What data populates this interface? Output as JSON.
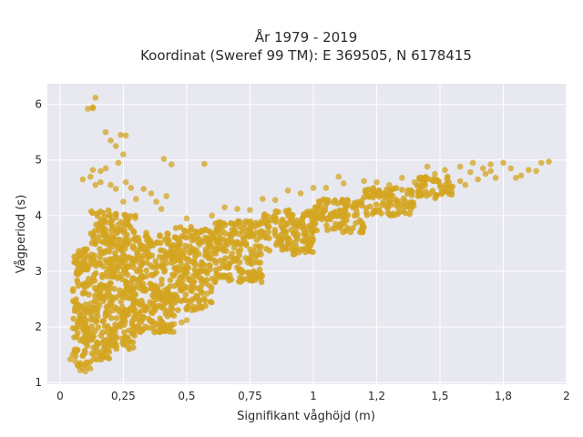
{
  "chart_data": {
    "type": "scatter",
    "title_line1": "År 1979 - 2019",
    "title_line2": "Koordinat (Sweref 99 TM): E 369505, N 6178415",
    "xlabel": "Signifikant våghöjd (m)",
    "ylabel": "Vågperiod (s)",
    "xlim": [
      -0.05,
      2.0
    ],
    "ylim": [
      0.97,
      6.37
    ],
    "x_ticks": [
      0,
      0.25,
      0.5,
      0.75,
      1.0,
      1.25,
      1.5,
      1.75,
      2.0
    ],
    "x_tick_labels": [
      "0",
      "0,25",
      "0,5",
      "0,75",
      "1",
      "1,2",
      "1,5",
      "1,8",
      "2"
    ],
    "y_ticks": [
      1,
      2,
      3,
      4,
      5,
      6
    ],
    "y_tick_labels": [
      "1",
      "2",
      "3",
      "4",
      "5",
      "6"
    ],
    "grid": true,
    "colors": {
      "marker": "#d4a520",
      "plot_background": "#e8e8f0",
      "grid": "#ffffff"
    },
    "density_bands": [
      {
        "x_from": 0.05,
        "x_to": 0.12,
        "y_low": 1.3,
        "y_high": 3.4
      },
      {
        "x_from": 0.12,
        "x_to": 0.2,
        "y_low": 1.4,
        "y_high": 4.1
      },
      {
        "x_from": 0.2,
        "x_to": 0.3,
        "y_low": 1.6,
        "y_high": 4.1
      },
      {
        "x_from": 0.3,
        "x_to": 0.45,
        "y_low": 1.9,
        "y_high": 3.7
      },
      {
        "x_from": 0.45,
        "x_to": 0.6,
        "y_low": 2.3,
        "y_high": 3.8
      },
      {
        "x_from": 0.6,
        "x_to": 0.8,
        "y_low": 2.8,
        "y_high": 3.9
      },
      {
        "x_from": 0.8,
        "x_to": 1.0,
        "y_low": 3.3,
        "y_high": 4.1
      },
      {
        "x_from": 1.0,
        "x_to": 1.2,
        "y_low": 3.7,
        "y_high": 4.3
      },
      {
        "x_from": 1.2,
        "x_to": 1.4,
        "y_low": 4.0,
        "y_high": 4.5
      },
      {
        "x_from": 1.4,
        "x_to": 1.55,
        "y_low": 4.3,
        "y_high": 4.7
      }
    ],
    "points": [
      [
        0.04,
        1.42
      ],
      [
        0.05,
        1.5
      ],
      [
        0.06,
        1.38
      ],
      [
        0.07,
        1.3
      ],
      [
        0.08,
        1.22
      ],
      [
        0.09,
        1.26
      ],
      [
        0.1,
        1.2
      ],
      [
        0.11,
        1.28
      ],
      [
        0.12,
        1.25
      ],
      [
        0.06,
        1.6
      ],
      [
        0.08,
        2.0
      ],
      [
        0.09,
        2.6
      ],
      [
        0.08,
        3.1
      ],
      [
        0.07,
        2.8
      ],
      [
        0.09,
        4.65
      ],
      [
        0.12,
        4.7
      ],
      [
        0.13,
        4.82
      ],
      [
        0.14,
        4.55
      ],
      [
        0.16,
        4.6
      ],
      [
        0.18,
        4.85
      ],
      [
        0.2,
        4.55
      ],
      [
        0.23,
        4.95
      ],
      [
        0.22,
        4.48
      ],
      [
        0.26,
        4.6
      ],
      [
        0.25,
        4.25
      ],
      [
        0.28,
        4.5
      ],
      [
        0.3,
        4.3
      ],
      [
        0.33,
        4.48
      ],
      [
        0.36,
        4.4
      ],
      [
        0.38,
        4.25
      ],
      [
        0.42,
        4.35
      ],
      [
        0.4,
        4.12
      ],
      [
        0.11,
        5.92
      ],
      [
        0.13,
        5.93
      ],
      [
        0.14,
        6.12
      ],
      [
        0.13,
        5.95
      ],
      [
        0.18,
        5.5
      ],
      [
        0.2,
        5.35
      ],
      [
        0.24,
        5.45
      ],
      [
        0.26,
        5.44
      ],
      [
        0.25,
        5.1
      ],
      [
        0.22,
        5.25
      ],
      [
        0.41,
        5.02
      ],
      [
        0.44,
        4.92
      ],
      [
        0.57,
        4.93
      ],
      [
        0.16,
        4.8
      ],
      [
        0.48,
        2.08
      ],
      [
        0.5,
        2.12
      ],
      [
        0.52,
        2.3
      ],
      [
        0.55,
        2.45
      ],
      [
        0.58,
        2.6
      ],
      [
        0.45,
        2.05
      ],
      [
        0.5,
        3.95
      ],
      [
        0.6,
        4.0
      ],
      [
        0.65,
        4.15
      ],
      [
        0.7,
        4.12
      ],
      [
        0.75,
        4.1
      ],
      [
        0.8,
        4.3
      ],
      [
        0.85,
        4.28
      ],
      [
        0.9,
        4.45
      ],
      [
        0.95,
        4.4
      ],
      [
        1.0,
        4.5
      ],
      [
        1.05,
        4.5
      ],
      [
        1.1,
        4.7
      ],
      [
        1.12,
        4.58
      ],
      [
        1.2,
        4.62
      ],
      [
        1.25,
        4.6
      ],
      [
        1.3,
        4.55
      ],
      [
        1.35,
        4.68
      ],
      [
        1.4,
        4.6
      ],
      [
        1.44,
        4.58
      ],
      [
        1.45,
        4.88
      ],
      [
        1.48,
        4.75
      ],
      [
        1.5,
        4.55
      ],
      [
        1.52,
        4.82
      ],
      [
        1.55,
        4.52
      ],
      [
        1.58,
        4.88
      ],
      [
        1.6,
        4.55
      ],
      [
        1.62,
        4.78
      ],
      [
        1.63,
        4.95
      ],
      [
        1.65,
        4.65
      ],
      [
        1.67,
        4.85
      ],
      [
        1.68,
        4.75
      ],
      [
        1.7,
        4.92
      ],
      [
        1.72,
        4.68
      ],
      [
        1.75,
        4.95
      ],
      [
        1.78,
        4.85
      ],
      [
        1.8,
        4.68
      ],
      [
        1.82,
        4.72
      ],
      [
        1.85,
        4.82
      ],
      [
        1.88,
        4.8
      ],
      [
        1.9,
        4.95
      ],
      [
        1.93,
        4.97
      ],
      [
        1.58,
        4.62
      ],
      [
        1.7,
        4.8
      ]
    ]
  }
}
